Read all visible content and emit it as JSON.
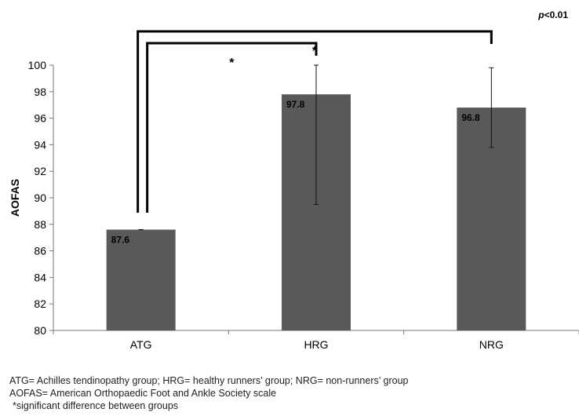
{
  "significance_label": "<0.01",
  "significance_prefix": "p",
  "chart_data": {
    "type": "bar",
    "ylabel": "AOFAS",
    "xlabel": "",
    "title": "",
    "ylim": [
      80,
      100
    ],
    "yticks": [
      80,
      82,
      84,
      86,
      88,
      90,
      92,
      94,
      96,
      98,
      100
    ],
    "categories": [
      "ATG",
      "HRG",
      "NRG"
    ],
    "values": [
      87.6,
      97.8,
      96.8
    ],
    "value_labels": [
      "87.6",
      "97.8",
      "96.8"
    ],
    "error_bars": [
      {
        "low": 87.6,
        "high": 87.6
      },
      {
        "low": 89.5,
        "high": 100.0
      },
      {
        "low": 93.8,
        "high": 99.8
      }
    ],
    "bar_color": "#595959",
    "significance_brackets": [
      {
        "from": "ATG",
        "to": "HRG",
        "label": "*"
      },
      {
        "from": "ATG",
        "to": "NRG",
        "label": "*"
      }
    ],
    "grid": false,
    "legend": "none"
  },
  "footnotes": [
    "ATG= Achilles tendinopathy group; HRG= healthy runners’ group; NRG= non-runners’ group",
    "AOFAS= American Orthopaedic Foot and Ankle Society scale",
    "*significant difference between groups"
  ]
}
